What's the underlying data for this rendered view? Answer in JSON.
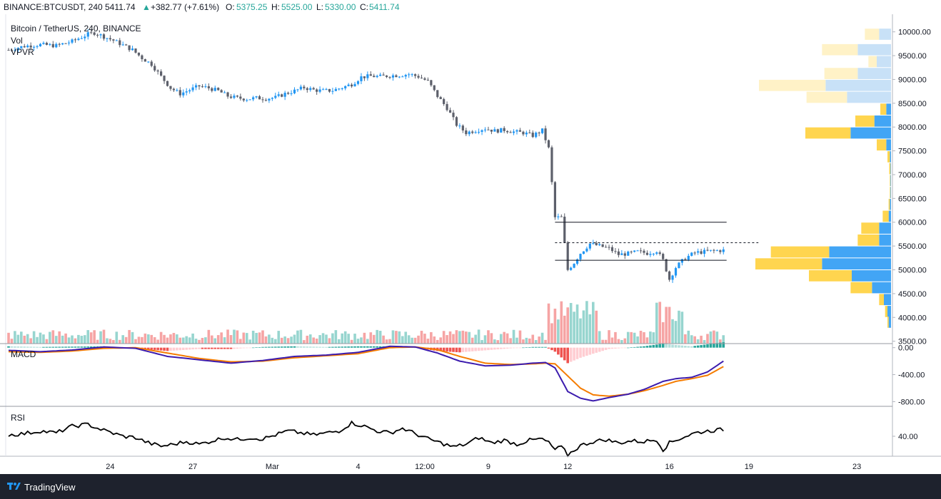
{
  "header": {
    "symbol": "BINANCE:BTCUSDT, 240",
    "last": "5411.74",
    "change": "+382.77 (+7.61%)",
    "open_label": "O:",
    "open": "5375.25",
    "high_label": "H:",
    "high": "5525.00",
    "low_label": "L:",
    "low": "5330.00",
    "close_label": "C:",
    "close": "5411.74"
  },
  "legend": {
    "title": "Bitcoin / TetherUS, 240, BINANCE",
    "vol": "Vol",
    "vpvr": "VPVR",
    "macd": "MACD",
    "rsi": "RSI"
  },
  "footer": {
    "brand": "TradingView"
  },
  "colors": {
    "up": "#2196f3",
    "down": "#5d606b",
    "vol_up": "#97d5cf",
    "vol_down": "#f6a4a4",
    "macd_line": "#3c1cae",
    "signal_line": "#f57c00",
    "hist_pos": "#26a69a",
    "hist_pos_weak": "#b2dfdb",
    "hist_neg": "#ef5350",
    "hist_neg_weak": "#ffcdd2",
    "vp_up": "#42a5f5",
    "vp_down": "#ffd54f",
    "vp_up_va_out": "#c8e1f7",
    "vp_down_va_out": "#fff2c7",
    "rsi": "#000000"
  },
  "chart_data": {
    "type": "candlestick",
    "title": "Bitcoin / TetherUS, 240, BINANCE",
    "x_tick_labels": [
      "24",
      "27",
      "Mar",
      "4",
      "12:00",
      "9",
      "12",
      "16",
      "19",
      "23"
    ],
    "price_axis": {
      "ticks": [
        "10000.00",
        "9500.00",
        "9000.00",
        "8500.00",
        "8000.00",
        "7500.00",
        "7000.00",
        "6500.00",
        "6000.00",
        "5500.00",
        "5000.00",
        "4500.00",
        "4000.00",
        "3500.00"
      ],
      "range": [
        3450,
        10100
      ]
    },
    "price_path": [
      [
        0,
        9620
      ],
      [
        5,
        9700
      ],
      [
        10,
        9730
      ],
      [
        15,
        9710
      ],
      [
        20,
        9800
      ],
      [
        25,
        9950
      ],
      [
        27,
        9980
      ],
      [
        30,
        9900
      ],
      [
        33,
        9820
      ],
      [
        36,
        9720
      ],
      [
        39,
        9620
      ],
      [
        42,
        9450
      ],
      [
        45,
        9320
      ],
      [
        48,
        9060
      ],
      [
        51,
        8820
      ],
      [
        54,
        8700
      ],
      [
        57,
        8780
      ],
      [
        60,
        8860
      ],
      [
        63,
        8820
      ],
      [
        66,
        8760
      ],
      [
        69,
        8650
      ],
      [
        72,
        8610
      ],
      [
        75,
        8590
      ],
      [
        78,
        8610
      ],
      [
        81,
        8600
      ],
      [
        84,
        8620
      ],
      [
        87,
        8700
      ],
      [
        90,
        8760
      ],
      [
        93,
        8830
      ],
      [
        96,
        8780
      ],
      [
        99,
        8760
      ],
      [
        102,
        8770
      ],
      [
        105,
        8830
      ],
      [
        108,
        8900
      ],
      [
        111,
        9050
      ],
      [
        114,
        9070
      ],
      [
        117,
        9060
      ],
      [
        120,
        9080
      ],
      [
        123,
        9090
      ],
      [
        126,
        9110
      ],
      [
        129,
        9060
      ],
      [
        132,
        8960
      ],
      [
        135,
        8650
      ],
      [
        138,
        8400
      ],
      [
        141,
        8050
      ],
      [
        144,
        7880
      ],
      [
        147,
        7930
      ],
      [
        150,
        7970
      ],
      [
        153,
        7920
      ],
      [
        156,
        7940
      ],
      [
        159,
        7900
      ],
      [
        162,
        7880
      ],
      [
        165,
        7820
      ],
      [
        168,
        7930
      ],
      [
        170,
        7550
      ],
      [
        172,
        6100
      ],
      [
        174,
        6100
      ],
      [
        176,
        5000
      ],
      [
        178,
        5150
      ],
      [
        180,
        5350
      ],
      [
        183,
        5550
      ],
      [
        186,
        5500
      ],
      [
        189,
        5450
      ],
      [
        192,
        5320
      ],
      [
        195,
        5340
      ],
      [
        198,
        5380
      ],
      [
        201,
        5350
      ],
      [
        204,
        5400
      ],
      [
        206,
        5200
      ],
      [
        208,
        4800
      ],
      [
        210,
        5050
      ],
      [
        213,
        5250
      ],
      [
        216,
        5360
      ],
      [
        219,
        5380
      ],
      [
        222,
        5400
      ],
      [
        225,
        5410
      ]
    ],
    "volume_profile": [
      {
        "price": 9950,
        "up": 1.0,
        "down": 1.2,
        "in_value_area": false
      },
      {
        "price": 9625,
        "up": 2.8,
        "down": 3.0,
        "in_value_area": false
      },
      {
        "price": 9375,
        "up": 1.2,
        "down": 0.7,
        "in_value_area": false
      },
      {
        "price": 9125,
        "up": 2.8,
        "down": 2.8,
        "in_value_area": false
      },
      {
        "price": 8875,
        "up": 5.5,
        "down": 5.6,
        "in_value_area": false
      },
      {
        "price": 8625,
        "up": 3.7,
        "down": 3.4,
        "in_value_area": false
      },
      {
        "price": 8375,
        "up": 0.4,
        "down": 0.5,
        "in_value_area": true
      },
      {
        "price": 8125,
        "up": 1.4,
        "down": 1.6,
        "in_value_area": true
      },
      {
        "price": 7875,
        "up": 3.4,
        "down": 3.8,
        "in_value_area": true
      },
      {
        "price": 7625,
        "up": 0.4,
        "down": 0.8,
        "in_value_area": true
      },
      {
        "price": 7375,
        "up": 0.1,
        "down": 0.2,
        "in_value_area": true
      },
      {
        "price": 7125,
        "up": 0.05,
        "down": 0.1,
        "in_value_area": true
      },
      {
        "price": 6875,
        "up": 0.05,
        "down": 0.05,
        "in_value_area": true
      },
      {
        "price": 6625,
        "up": 0.05,
        "down": 0.05,
        "in_value_area": true
      },
      {
        "price": 6375,
        "up": 0.1,
        "down": 0.1,
        "in_value_area": true
      },
      {
        "price": 6125,
        "up": 0.2,
        "down": 0.5,
        "in_value_area": true
      },
      {
        "price": 5875,
        "up": 1.0,
        "down": 1.5,
        "in_value_area": true
      },
      {
        "price": 5625,
        "up": 1.0,
        "down": 1.8,
        "in_value_area": true
      },
      {
        "price": 5375,
        "up": 5.2,
        "down": 4.9,
        "in_value_area": true
      },
      {
        "price": 5125,
        "up": 5.8,
        "down": 5.6,
        "in_value_area": true
      },
      {
        "price": 4875,
        "up": 3.3,
        "down": 3.6,
        "in_value_area": true
      },
      {
        "price": 4625,
        "up": 1.6,
        "down": 1.8,
        "in_value_area": true
      },
      {
        "price": 4375,
        "up": 0.6,
        "down": 0.4,
        "in_value_area": true
      },
      {
        "price": 4125,
        "up": 0.3,
        "down": 0.2,
        "in_value_area": true
      },
      {
        "price": 3900,
        "up": 0.2,
        "down": 0.1,
        "in_value_area": true
      }
    ],
    "volume_profile_max": 12.0,
    "levels": [
      {
        "price": 6000,
        "style": "solid",
        "x_from": 172,
        "x_to": 226
      },
      {
        "price": 5570,
        "style": "dashed",
        "x_from": 172,
        "x_to": 236
      },
      {
        "price": 5200,
        "style": "solid",
        "x_from": 172,
        "x_to": 226
      }
    ],
    "macd": {
      "axis_ticks": [
        "0.00",
        "-400.00",
        "-800.00"
      ],
      "range": [
        -870,
        60
      ],
      "macd_path": [
        [
          0,
          -40
        ],
        [
          10,
          -60
        ],
        [
          20,
          -35
        ],
        [
          30,
          10
        ],
        [
          40,
          -10
        ],
        [
          50,
          -130
        ],
        [
          60,
          -180
        ],
        [
          70,
          -230
        ],
        [
          80,
          -190
        ],
        [
          90,
          -130
        ],
        [
          100,
          -110
        ],
        [
          110,
          -70
        ],
        [
          120,
          20
        ],
        [
          128,
          10
        ],
        [
          135,
          -80
        ],
        [
          142,
          -200
        ],
        [
          150,
          -270
        ],
        [
          158,
          -260
        ],
        [
          165,
          -230
        ],
        [
          169,
          -220
        ],
        [
          172,
          -300
        ],
        [
          176,
          -650
        ],
        [
          180,
          -750
        ],
        [
          184,
          -790
        ],
        [
          189,
          -740
        ],
        [
          195,
          -690
        ],
        [
          200,
          -620
        ],
        [
          206,
          -500
        ],
        [
          210,
          -460
        ],
        [
          215,
          -440
        ],
        [
          220,
          -360
        ],
        [
          225,
          -200
        ]
      ],
      "signal_path": [
        [
          0,
          -60
        ],
        [
          10,
          -70
        ],
        [
          20,
          -50
        ],
        [
          30,
          -10
        ],
        [
          40,
          0
        ],
        [
          50,
          -80
        ],
        [
          60,
          -160
        ],
        [
          70,
          -210
        ],
        [
          80,
          -200
        ],
        [
          90,
          -150
        ],
        [
          100,
          -120
        ],
        [
          110,
          -90
        ],
        [
          120,
          0
        ],
        [
          128,
          10
        ],
        [
          135,
          -30
        ],
        [
          142,
          -130
        ],
        [
          150,
          -230
        ],
        [
          158,
          -250
        ],
        [
          165,
          -240
        ],
        [
          169,
          -230
        ],
        [
          172,
          -240
        ],
        [
          176,
          -420
        ],
        [
          180,
          -600
        ],
        [
          184,
          -700
        ],
        [
          189,
          -720
        ],
        [
          195,
          -690
        ],
        [
          200,
          -640
        ],
        [
          206,
          -560
        ],
        [
          210,
          -500
        ],
        [
          215,
          -460
        ],
        [
          220,
          -410
        ],
        [
          225,
          -280
        ]
      ]
    },
    "rsi": {
      "axis_ticks": [
        "40.00"
      ],
      "range": [
        10,
        85
      ],
      "rsi_path": [
        [
          0,
          42
        ],
        [
          5,
          44
        ],
        [
          10,
          48
        ],
        [
          15,
          45
        ],
        [
          20,
          55
        ],
        [
          25,
          58
        ],
        [
          28,
          52
        ],
        [
          32,
          46
        ],
        [
          36,
          40
        ],
        [
          40,
          38
        ],
        [
          44,
          30
        ],
        [
          48,
          25
        ],
        [
          52,
          28
        ],
        [
          56,
          32
        ],
        [
          60,
          28
        ],
        [
          64,
          33
        ],
        [
          68,
          38
        ],
        [
          72,
          35
        ],
        [
          76,
          38
        ],
        [
          80,
          36
        ],
        [
          84,
          42
        ],
        [
          88,
          48
        ],
        [
          92,
          45
        ],
        [
          96,
          42
        ],
        [
          100,
          45
        ],
        [
          104,
          48
        ],
        [
          108,
          60
        ],
        [
          112,
          55
        ],
        [
          116,
          48
        ],
        [
          120,
          45
        ],
        [
          124,
          52
        ],
        [
          128,
          44
        ],
        [
          132,
          36
        ],
        [
          136,
          30
        ],
        [
          140,
          24
        ],
        [
          144,
          28
        ],
        [
          148,
          38
        ],
        [
          152,
          30
        ],
        [
          156,
          34
        ],
        [
          160,
          28
        ],
        [
          164,
          34
        ],
        [
          168,
          36
        ],
        [
          170,
          30
        ],
        [
          172,
          20
        ],
        [
          174,
          24
        ],
        [
          176,
          12
        ],
        [
          180,
          26
        ],
        [
          184,
          32
        ],
        [
          188,
          35
        ],
        [
          192,
          30
        ],
        [
          196,
          33
        ],
        [
          200,
          32
        ],
        [
          204,
          35
        ],
        [
          206,
          20
        ],
        [
          208,
          30
        ],
        [
          212,
          38
        ],
        [
          216,
          45
        ],
        [
          220,
          48
        ],
        [
          225,
          50
        ]
      ]
    }
  }
}
